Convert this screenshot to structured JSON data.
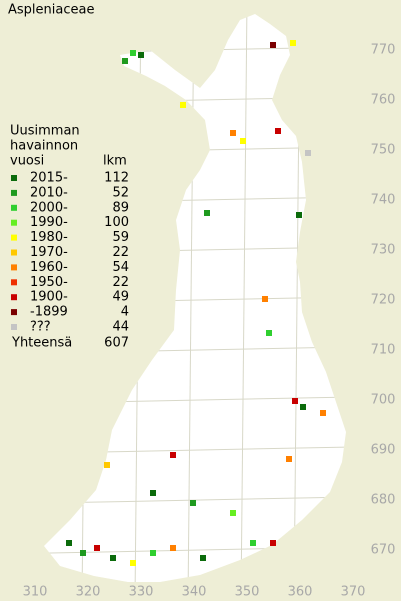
{
  "title": "Aspleniaceae",
  "legend": {
    "heading": [
      "Uusimman",
      "havainnon",
      "vuosi"
    ],
    "count_heading": "lkm",
    "rows": [
      {
        "label": "2015-",
        "count": 112,
        "color": "#0b6b0b"
      },
      {
        "label": "2010-",
        "count": 52,
        "color": "#1f9a1f"
      },
      {
        "label": "2000-",
        "count": 89,
        "color": "#2fcf2f"
      },
      {
        "label": "1990-",
        "count": 100,
        "color": "#66ee22"
      },
      {
        "label": "1980-",
        "count": 59,
        "color": "#ffff00"
      },
      {
        "label": "1970-",
        "count": 22,
        "color": "#ffc800"
      },
      {
        "label": "1960-",
        "count": 54,
        "color": "#ff8000"
      },
      {
        "label": "1950-",
        "count": 22,
        "color": "#ee3000"
      },
      {
        "label": "1900-",
        "count": 49,
        "color": "#c80000"
      },
      {
        "label": "-1899",
        "count": 4,
        "color": "#7a0000"
      },
      {
        "label": "???",
        "count": 44,
        "color": "#c4c4c4"
      }
    ],
    "total_label": "Yhteensä",
    "total": 607
  },
  "x_axis": [
    310,
    320,
    330,
    340,
    350,
    360,
    370
  ],
  "y_axis": [
    670,
    680,
    690,
    700,
    710,
    720,
    730,
    740,
    750,
    760,
    770
  ]
}
